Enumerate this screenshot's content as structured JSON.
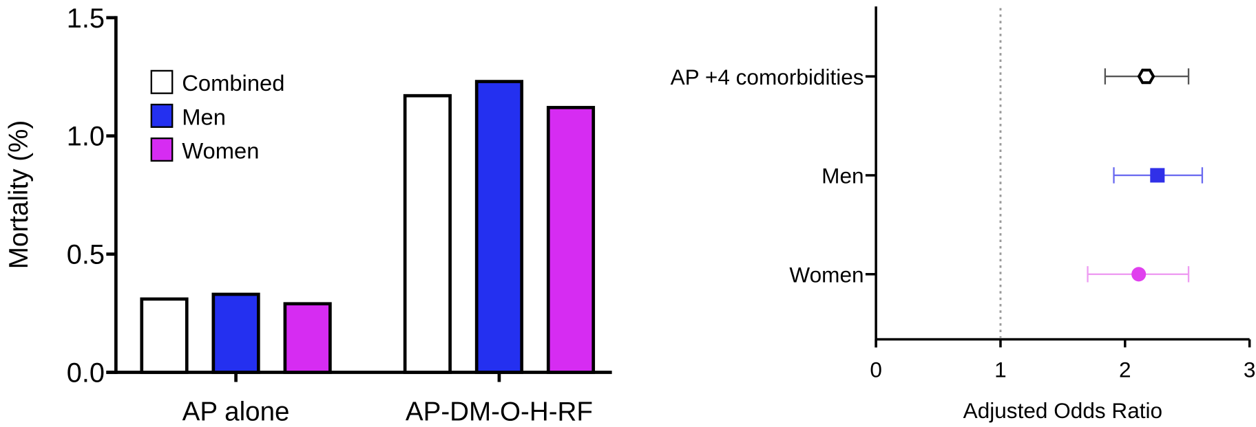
{
  "chart_data": [
    {
      "type": "bar",
      "title": "",
      "xlabel": "",
      "ylabel": "Mortality (%)",
      "ylim": [
        0,
        1.5
      ],
      "yticks": [
        "0.0",
        "0.5",
        "1.0",
        "1.5"
      ],
      "ytick_values": [
        0,
        0.5,
        1.0,
        1.5
      ],
      "categories": [
        "AP alone",
        "AP-DM-O-H-RF"
      ],
      "series": [
        {
          "name": "Combined",
          "color": "#ffffff",
          "values": [
            0.31,
            1.17
          ]
        },
        {
          "name": "Men",
          "color": "#2430f0",
          "values": [
            0.33,
            1.23
          ]
        },
        {
          "name": "Women",
          "color": "#d62cf2",
          "values": [
            0.29,
            1.12
          ]
        }
      ],
      "legend_position": "top-left",
      "grid": false
    },
    {
      "type": "scatter",
      "subtype": "forest",
      "xlabel": "Adjusted Odds Ratio",
      "xlim": [
        0,
        3
      ],
      "xticks": [
        "0",
        "1",
        "2",
        "3"
      ],
      "xtick_values": [
        0,
        1,
        2,
        3
      ],
      "reference_line": 1,
      "rows": [
        {
          "label": "AP +4 comorbidities",
          "estimate": 2.17,
          "ci_low": 1.84,
          "ci_high": 2.51,
          "color": "#000000",
          "ci_color": "#555555",
          "marker": "hexagon-open"
        },
        {
          "label": "Men",
          "estimate": 2.26,
          "ci_low": 1.91,
          "ci_high": 2.62,
          "color": "#3030e8",
          "ci_color": "#6b6bf0",
          "marker": "square"
        },
        {
          "label": "Women",
          "estimate": 2.11,
          "ci_low": 1.7,
          "ci_high": 2.51,
          "color": "#e040ee",
          "ci_color": "#ee9cf2",
          "marker": "circle"
        }
      ],
      "grid": false
    }
  ]
}
